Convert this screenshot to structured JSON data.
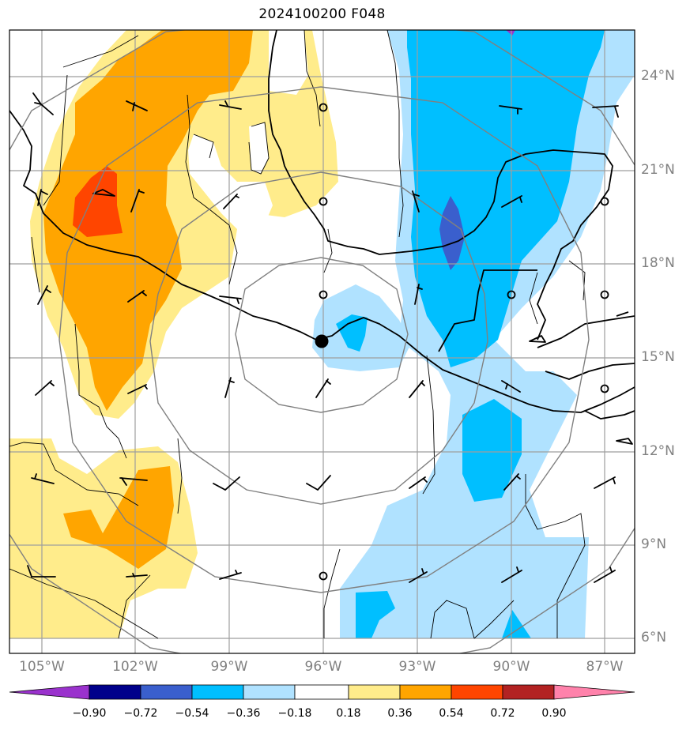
{
  "title": "2024100200 F048",
  "map": {
    "lat_labels": [
      {
        "lat": 24,
        "text": "24°N"
      },
      {
        "lat": 21,
        "text": "21°N"
      },
      {
        "lat": 18,
        "text": "18°N"
      },
      {
        "lat": 15,
        "text": "15°N"
      },
      {
        "lat": 12,
        "text": "12°N"
      },
      {
        "lat": 9,
        "text": "9°N"
      },
      {
        "lat": 6,
        "text": "6°N"
      }
    ],
    "lon_labels": [
      {
        "lon": -105,
        "text": "105°W"
      },
      {
        "lon": -102,
        "text": "102°W"
      },
      {
        "lon": -99,
        "text": "99°W"
      },
      {
        "lon": -96,
        "text": "96°W"
      },
      {
        "lon": -93,
        "text": "93°W"
      },
      {
        "lon": -90,
        "text": "90°W"
      },
      {
        "lon": -87,
        "text": "87°W"
      }
    ],
    "center": {
      "lon": -96,
      "lat": 15.5
    },
    "colors": {
      "grid": "#9e9e9e",
      "range_rings": "#808080",
      "coast": "#000000",
      "label": "#808080"
    }
  },
  "colorbar": {
    "levels": [
      "−0.90",
      "−0.72",
      "−0.54",
      "−0.36",
      "−0.18",
      "0.18",
      "0.36",
      "0.54",
      "0.72",
      "0.90"
    ],
    "colors": [
      "#9a32cd",
      "#00008b",
      "#3a5fcd",
      "#00bfff",
      "#b0e2ff",
      "#ffffff",
      "#ffec8b",
      "#ffa500",
      "#ff4500",
      "#b22222",
      "#ff82ab"
    ]
  }
}
